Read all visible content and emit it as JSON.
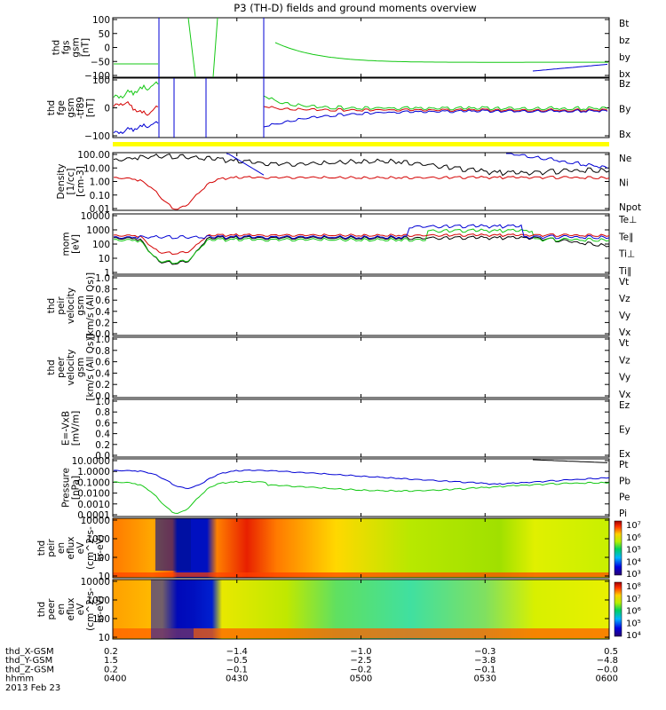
{
  "title": "P3 (TH-D) fields and ground moments overview",
  "colors": {
    "black": "#000000",
    "red": "#d40000",
    "green": "#14c814",
    "blue": "#0000d4",
    "yellow": "#ffff00"
  },
  "chart_data": [
    {
      "id": "fgs",
      "type": "line",
      "ylabel": [
        "thd",
        "fgs",
        "gsm",
        "[nT]"
      ],
      "yticks": [
        "100",
        "50",
        "0",
        "−50",
        "−100"
      ],
      "legend": [
        {
          "name": "Bt",
          "color": "black"
        },
        {
          "name": "bz",
          "color": "red"
        },
        {
          "name": "by",
          "color": "green"
        },
        {
          "name": "bx",
          "color": "blue"
        }
      ]
    },
    {
      "id": "fge",
      "type": "line",
      "ylabel": [
        "thd",
        "fge",
        "gsm",
        "-tf89",
        "[nT]"
      ],
      "yticks": [
        "100",
        "0",
        "−100"
      ],
      "legend": [
        {
          "name": "Bz",
          "color": "red"
        },
        {
          "name": "By",
          "color": "green"
        },
        {
          "name": "Bx",
          "color": "blue"
        }
      ]
    },
    {
      "id": "density",
      "type": "line",
      "ylog": true,
      "ylabel": [
        "Density",
        "[1/cc]",
        "[cm-3]"
      ],
      "yticks": [
        "100.00",
        "10.00",
        "1.00",
        "0.10",
        "0.01"
      ],
      "legend": [
        {
          "name": "Ne",
          "color": "red"
        },
        {
          "name": "Ni",
          "color": "black"
        },
        {
          "name": "Npot",
          "color": "blue"
        }
      ]
    },
    {
      "id": "temp",
      "type": "line",
      "ylog": true,
      "ylabel": [
        "mom",
        "[eV]"
      ],
      "yticks": [
        "10000",
        "1000",
        "100",
        "10",
        "1"
      ],
      "legend": [
        {
          "name": "Te⊥",
          "color": "red"
        },
        {
          "name": "Te∥",
          "color": "black"
        },
        {
          "name": "Ti⊥",
          "color": "black"
        },
        {
          "name": "Ti∥",
          "color": "green"
        }
      ]
    },
    {
      "id": "peirvel",
      "type": "line",
      "ylabel": [
        "thd",
        "peir",
        "velocity",
        "gsm",
        "[km/s (All Qs)]"
      ],
      "yticks": [
        "1.0",
        "0.8",
        "0.6",
        "0.4",
        "0.2",
        "0.0"
      ],
      "legend": [
        {
          "name": "Vt",
          "color": "black"
        },
        {
          "name": "Vz",
          "color": "red"
        },
        {
          "name": "Vy",
          "color": "green"
        },
        {
          "name": "Vx",
          "color": "blue"
        }
      ]
    },
    {
      "id": "peervel",
      "type": "line",
      "ylabel": [
        "thd",
        "peer",
        "velocity",
        "gsm",
        "[km/s (All Qs)]"
      ],
      "yticks": [
        "1.0",
        "0.8",
        "0.6",
        "0.4",
        "0.2",
        "0.0"
      ],
      "legend": [
        {
          "name": "Vt",
          "color": "black"
        },
        {
          "name": "Vz",
          "color": "red"
        },
        {
          "name": "Vy",
          "color": "green"
        },
        {
          "name": "Vx",
          "color": "blue"
        }
      ]
    },
    {
      "id": "efield",
      "type": "line",
      "ylabel": [
        "E=-VxB",
        "[mV/m]"
      ],
      "yticks": [
        "1.0",
        "0.8",
        "0.6",
        "0.4",
        "0.2",
        "0.0"
      ],
      "legend": [
        {
          "name": "Ez",
          "color": "red"
        },
        {
          "name": "Ey",
          "color": "green"
        },
        {
          "name": "Ex",
          "color": "blue"
        }
      ]
    },
    {
      "id": "pressure",
      "type": "line",
      "ylog": true,
      "ylabel": [
        "Pressure",
        "[nPa]"
      ],
      "yticks": [
        "10.0000",
        "1.0000",
        "0.1000",
        "0.0100",
        "0.0010",
        "0.0001"
      ],
      "legend": [
        {
          "name": "Pt",
          "color": "black"
        },
        {
          "name": "Pb",
          "color": "red"
        },
        {
          "name": "Pe",
          "color": "green"
        },
        {
          "name": "Pi",
          "color": "blue"
        }
      ]
    },
    {
      "id": "peir_spec",
      "type": "heatmap",
      "ylog": true,
      "ylabel": [
        "thd",
        "peir",
        "en",
        "eflux",
        "eV",
        "(cm^2-s-",
        "sr-eV)"
      ],
      "yticks": [
        "10000",
        "1000",
        "100",
        "10"
      ],
      "cbar": [
        "10⁷",
        "10⁶",
        "10⁵",
        "10⁴",
        "10³"
      ]
    },
    {
      "id": "peer_spec",
      "type": "heatmap",
      "ylog": true,
      "ylabel": [
        "thd",
        "peer",
        "en",
        "eflux",
        "eV",
        "(cm^2-s-",
        "sr-eV)"
      ],
      "yticks": [
        "10000",
        "1000",
        "100",
        "10"
      ],
      "cbar": [
        "10⁸",
        "10⁷",
        "10⁶",
        "10⁵",
        "10⁴"
      ]
    }
  ],
  "ephemeris": {
    "labels": [
      "thd_X-GSM",
      "thd_Y-GSM",
      "thd_Z-GSM",
      "hhmm",
      "2013 Feb 23"
    ],
    "columns": [
      {
        "x": "0.2",
        "y": "1.5",
        "z": "0.2",
        "t": "0400"
      },
      {
        "x": "−1.4",
        "y": "−0.5",
        "z": "−0.1",
        "t": "0430"
      },
      {
        "x": "−1.0",
        "y": "−2.5",
        "z": "−0.2",
        "t": "0500"
      },
      {
        "x": "−0.3",
        "y": "−3.8",
        "z": "−0.1",
        "t": "0530"
      },
      {
        "x": "0.5",
        "y": "−4.8",
        "z": "−0.0",
        "t": "0600"
      }
    ]
  }
}
